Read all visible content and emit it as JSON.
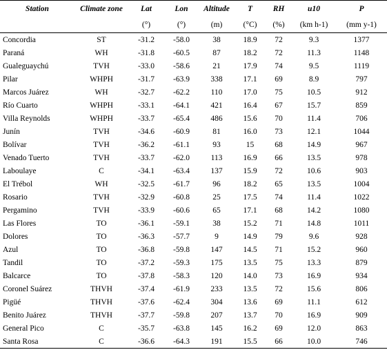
{
  "headers": {
    "station": "Station",
    "climate_zone": "Climate zone",
    "lat": "Lat",
    "lon": "Lon",
    "altitude": "Altitude",
    "t": "T",
    "rh": "RH",
    "u10": "u10",
    "p": "P"
  },
  "units": {
    "lat": "(°)",
    "lon": "(°)",
    "altitude": "(m)",
    "t": "(°C)",
    "rh": "(%)",
    "u10": "(km h-1)",
    "p": "(mm y-1)"
  },
  "rows": [
    [
      "Concordia",
      "ST",
      "-31.2",
      "-58.0",
      "38",
      "18.9",
      "72",
      "9.3",
      "1377"
    ],
    [
      "Paraná",
      "WH",
      "-31.8",
      "-60.5",
      "87",
      "18.2",
      "72",
      "11.3",
      "1148"
    ],
    [
      "Gualeguaychú",
      "TVH",
      "-33.0",
      "-58.6",
      "21",
      "17.9",
      "74",
      "9.5",
      "1119"
    ],
    [
      "Pilar",
      "WHPH",
      "-31.7",
      "-63.9",
      "338",
      "17.1",
      "69",
      "8.9",
      "797"
    ],
    [
      "Marcos Juárez",
      "WH",
      "-32.7",
      "-62.2",
      "110",
      "17.0",
      "75",
      "10.5",
      "912"
    ],
    [
      "Río Cuarto",
      "WHPH",
      "-33.1",
      "-64.1",
      "421",
      "16.4",
      "67",
      "15.7",
      "859"
    ],
    [
      "Villa Reynolds",
      "WHPH",
      "-33.7",
      "-65.4",
      "486",
      "15.6",
      "70",
      "11.4",
      "706"
    ],
    [
      "Junín",
      "TVH",
      "-34.6",
      "-60.9",
      "81",
      "16.0",
      "73",
      "12.1",
      "1044"
    ],
    [
      "Bolívar",
      "TVH",
      "-36.2",
      "-61.1",
      "93",
      "15",
      "68",
      "14.9",
      "967"
    ],
    [
      "Venado Tuerto",
      "TVH",
      "-33.7",
      "-62.0",
      "113",
      "16.9",
      "66",
      "13.5",
      "978"
    ],
    [
      "Laboulaye",
      "C",
      "-34.1",
      "-63.4",
      "137",
      "15.9",
      "72",
      "10.6",
      "903"
    ],
    [
      "El Trébol",
      "WH",
      "-32.5",
      "-61.7",
      "96",
      "18.2",
      "65",
      "13.5",
      "1004"
    ],
    [
      "Rosario",
      "TVH",
      "-32.9",
      "-60.8",
      "25",
      "17.5",
      "74",
      "11.4",
      "1022"
    ],
    [
      "Pergamino",
      "TVH",
      "-33.9",
      "-60.6",
      "65",
      "17.1",
      "68",
      "14.2",
      "1080"
    ],
    [
      "Las Flores",
      "TO",
      "-36.1",
      "-59.1",
      "38",
      "15.2",
      "71",
      "14.8",
      "1011"
    ],
    [
      "Dolores",
      "TO",
      "-36.3",
      "-57.7",
      "9",
      "14.9",
      "79",
      "9.6",
      "928"
    ],
    [
      "Azul",
      "TO",
      "-36.8",
      "-59.8",
      "147",
      "14.5",
      "71",
      "15.2",
      "960"
    ],
    [
      "Tandil",
      "TO",
      "-37.2",
      "-59.3",
      "175",
      "13.5",
      "75",
      "13.3",
      "879"
    ],
    [
      "Balcarce",
      "TO",
      "-37.8",
      "-58.3",
      "120",
      "14.0",
      "73",
      "16.9",
      "934"
    ],
    [
      "Coronel Suárez",
      "THVH",
      "-37.4",
      "-61.9",
      "233",
      "13.5",
      "72",
      "15.6",
      "806"
    ],
    [
      "Pigüé",
      "THVH",
      "-37.6",
      "-62.4",
      "304",
      "13.6",
      "69",
      "11.1",
      "612"
    ],
    [
      "Benito Juárez",
      "THVH",
      "-37.7",
      "-59.8",
      "207",
      "13.7",
      "70",
      "16.9",
      "909"
    ],
    [
      "General Pico",
      "C",
      "-35.7",
      "-63.8",
      "145",
      "16.2",
      "69",
      "12.0",
      "863"
    ],
    [
      "Santa Rosa",
      "C",
      "-36.6",
      "-64.3",
      "191",
      "15.5",
      "66",
      "10.0",
      "746"
    ]
  ]
}
